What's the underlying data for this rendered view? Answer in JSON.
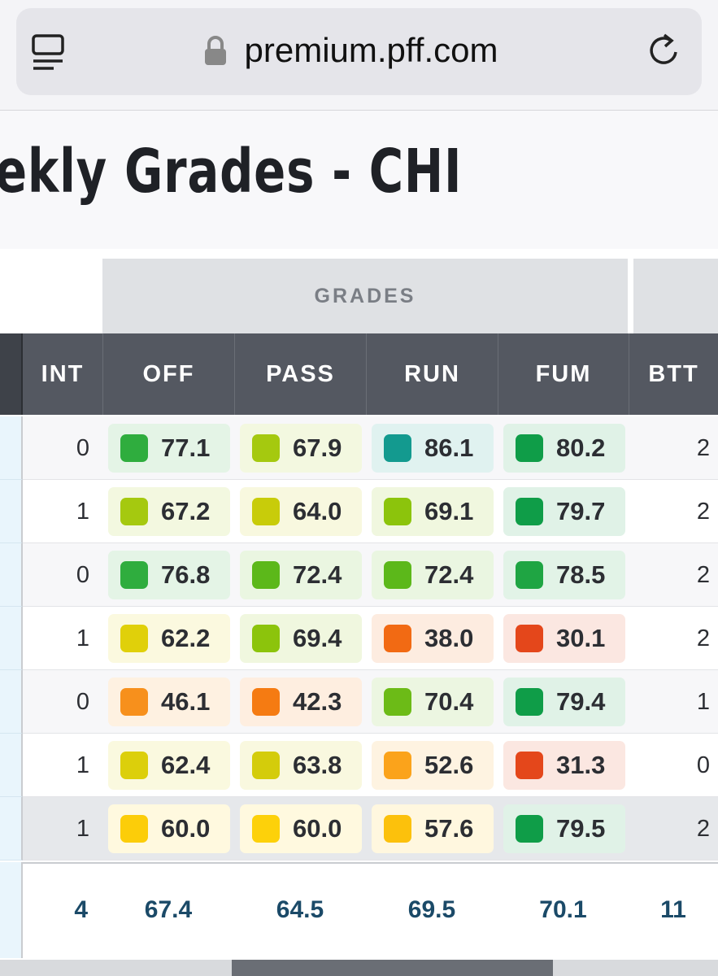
{
  "browser": {
    "url": "premium.pff.com"
  },
  "header": {
    "title": "ekly Grades - CHI"
  },
  "table": {
    "group_header": "GRADES",
    "columns": [
      "INT",
      "OFF",
      "PASS",
      "RUN",
      "FUM",
      "BTT"
    ],
    "rows": [
      {
        "int": 0,
        "grades": [
          {
            "value": "77.1",
            "color": "#2fad3e"
          },
          {
            "value": "67.9",
            "color": "#a5c90f"
          },
          {
            "value": "86.1",
            "color": "#139a8f"
          },
          {
            "value": "80.2",
            "color": "#0f9d48"
          }
        ],
        "btt": 2
      },
      {
        "int": 1,
        "grades": [
          {
            "value": "67.2",
            "color": "#a5c90f"
          },
          {
            "value": "64.0",
            "color": "#c8cc0a"
          },
          {
            "value": "69.1",
            "color": "#8cc40c"
          },
          {
            "value": "79.7",
            "color": "#0f9d48"
          }
        ],
        "btt": 2
      },
      {
        "int": 0,
        "grades": [
          {
            "value": "76.8",
            "color": "#2fad3e"
          },
          {
            "value": "72.4",
            "color": "#5cb81a"
          },
          {
            "value": "72.4",
            "color": "#5cb81a"
          },
          {
            "value": "78.5",
            "color": "#1fa543"
          }
        ],
        "btt": 2
      },
      {
        "int": 1,
        "grades": [
          {
            "value": "62.2",
            "color": "#e0d00a"
          },
          {
            "value": "69.4",
            "color": "#8cc40c"
          },
          {
            "value": "38.0",
            "color": "#f26a13"
          },
          {
            "value": "30.1",
            "color": "#e4471b"
          }
        ],
        "btt": 2
      },
      {
        "int": 0,
        "grades": [
          {
            "value": "46.1",
            "color": "#f7901c"
          },
          {
            "value": "42.3",
            "color": "#f57b12"
          },
          {
            "value": "70.4",
            "color": "#6cbb17"
          },
          {
            "value": "79.4",
            "color": "#0f9d48"
          }
        ],
        "btt": 1
      },
      {
        "int": 1,
        "grades": [
          {
            "value": "62.4",
            "color": "#dccf0b"
          },
          {
            "value": "63.8",
            "color": "#d4cc0b"
          },
          {
            "value": "52.6",
            "color": "#fba31b"
          },
          {
            "value": "31.3",
            "color": "#e4471b"
          }
        ],
        "btt": 0
      },
      {
        "int": 1,
        "grades": [
          {
            "value": "60.0",
            "color": "#fccd09"
          },
          {
            "value": "60.0",
            "color": "#fdd10a"
          },
          {
            "value": "57.6",
            "color": "#fcc10c"
          },
          {
            "value": "79.5",
            "color": "#0f9d48"
          }
        ],
        "btt": 2
      }
    ],
    "totals": [
      "4",
      "67.4",
      "64.5",
      "69.5",
      "70.1",
      "11"
    ]
  }
}
